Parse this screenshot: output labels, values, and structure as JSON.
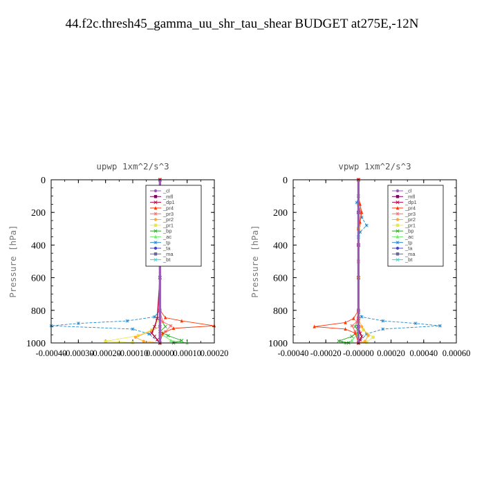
{
  "suptitle": "44.f2c.thresh45_gamma_uu_shr_tau_shear  BUDGET at275E,-12N",
  "legend_labels": [
    "_cl",
    "_mfl",
    "_dp1",
    "_pr4",
    "_pr3",
    "_pr2",
    "_pr1",
    "_bp",
    "_ac",
    "_tp",
    "_ta",
    "_ma",
    "_bt"
  ],
  "legend_colors": [
    "#9b59b6",
    "#800060",
    "#b0003a",
    "#ff3300",
    "#ff6666",
    "#ffaa33",
    "#e8e84a",
    "#22aa22",
    "#66ee66",
    "#2288cc",
    "#4444cc",
    "#666699",
    "#22dddd"
  ],
  "chart_data": [
    {
      "type": "line",
      "title": "upwp   1xm^2/s^3",
      "ylabel": "Pressure [hPa]",
      "ylim": [
        1000,
        0
      ],
      "xlim": [
        -0.0004,
        0.0002
      ],
      "yticks": [
        "0",
        "200",
        "400",
        "600",
        "800",
        "1000"
      ],
      "xticks": [
        "-0.00040",
        "-0.00030",
        "-0.00020",
        "-0.00010",
        "0.00000",
        "0.00010",
        "0.00020"
      ],
      "series": [
        {
          "name": "_cl",
          "x": [
            0,
            0,
            0,
            0,
            0,
            0,
            0,
            0,
            0,
            0,
            0,
            0
          ],
          "y": [
            0,
            100,
            200,
            300,
            400,
            500,
            600,
            700,
            800,
            900,
            950,
            1000
          ]
        },
        {
          "name": "_mfl",
          "x": [
            0,
            0,
            0,
            0,
            0,
            0,
            0,
            0,
            0,
            0,
            0,
            0
          ],
          "y": [
            0,
            100,
            200,
            300,
            400,
            500,
            600,
            700,
            800,
            900,
            950,
            1000
          ]
        },
        {
          "name": "_dp1",
          "x": [
            0,
            0,
            0,
            0,
            0,
            0,
            0,
            -1e-05,
            -2e-05,
            -3e-05,
            -2e-05,
            -1e-05,
            0
          ],
          "y": [
            0,
            100,
            200,
            300,
            400,
            500,
            600,
            850,
            900,
            940,
            960,
            980,
            1000
          ]
        },
        {
          "name": "_pr4",
          "x": [
            0,
            0,
            0,
            5e-06,
            0,
            0,
            0,
            2e-05,
            8e-05,
            0.0002,
            5e-05,
            1e-05,
            0
          ],
          "y": [
            0,
            100,
            200,
            250,
            300,
            500,
            800,
            845,
            865,
            895,
            910,
            940,
            1000
          ]
        },
        {
          "name": "_pr3",
          "x": [
            0,
            0,
            5e-06,
            0,
            0,
            0,
            1e-05,
            4e-05,
            2e-05,
            0,
            0
          ],
          "y": [
            0,
            150,
            230,
            270,
            500,
            800,
            870,
            895,
            930,
            960,
            1000
          ]
        },
        {
          "name": "_pr2",
          "x": [
            0,
            0,
            0,
            0,
            0,
            -3e-05,
            -9e-05,
            -6e-05,
            0
          ],
          "y": [
            0,
            300,
            600,
            800,
            900,
            925,
            965,
            990,
            1000
          ]
        },
        {
          "name": "_pr1",
          "x": [
            0,
            0,
            0,
            0,
            -3e-05,
            -8e-05,
            -0.0002,
            -0.0001,
            0
          ],
          "y": [
            0,
            300,
            600,
            850,
            920,
            955,
            990,
            998,
            1000
          ]
        },
        {
          "name": "_bp",
          "x": [
            0,
            0,
            0,
            0,
            2e-05,
            0,
            3e-05,
            8e-05,
            5e-05
          ],
          "y": [
            0,
            300,
            600,
            850,
            900,
            930,
            955,
            985,
            1000
          ]
        },
        {
          "name": "_ac",
          "x": [
            0,
            0,
            0,
            0,
            1e-05,
            4e-05,
            0.0001
          ],
          "y": [
            0,
            300,
            600,
            900,
            950,
            985,
            1000
          ]
        },
        {
          "name": "_tp",
          "x": [
            0,
            0,
            -5e-06,
            -1.5e-05,
            0,
            0,
            0,
            -2e-05,
            -0.00012,
            -0.0003,
            -0.0004,
            -0.0001,
            -4e-05,
            0
          ],
          "y": [
            0,
            100,
            150,
            200,
            240,
            500,
            800,
            840,
            865,
            880,
            895,
            915,
            945,
            1000
          ]
        },
        {
          "name": "_ta",
          "x": [
            0,
            0,
            0,
            0,
            0,
            0,
            0
          ],
          "y": [
            0,
            200,
            400,
            600,
            800,
            900,
            1000
          ]
        },
        {
          "name": "_ma",
          "x": [
            0,
            0,
            0,
            0,
            0,
            0,
            0
          ],
          "y": [
            0,
            200,
            400,
            600,
            800,
            900,
            1000
          ]
        },
        {
          "name": "_bt",
          "x": [
            0,
            0,
            0,
            0,
            0,
            0,
            0
          ],
          "y": [
            0,
            200,
            400,
            600,
            800,
            900,
            1000
          ]
        }
      ]
    },
    {
      "type": "line",
      "title": "vpwp   1xm^2/s^3",
      "ylabel": "Pressure [hPa]",
      "ylim": [
        1000,
        0
      ],
      "xlim": [
        -0.0004,
        0.0006
      ],
      "yticks": [
        "0",
        "200",
        "400",
        "600",
        "800",
        "1000"
      ],
      "xticks": [
        "-0.00040",
        "-0.00020",
        "-0.00000",
        "0.00020",
        "0.00040",
        "0.00060"
      ],
      "series": [
        {
          "name": "_cl",
          "x": [
            0,
            0,
            0,
            0,
            0,
            0,
            0,
            0,
            0,
            0,
            0,
            0
          ],
          "y": [
            0,
            100,
            200,
            300,
            400,
            500,
            600,
            700,
            800,
            900,
            950,
            1000
          ]
        },
        {
          "name": "_mfl",
          "x": [
            0,
            0,
            0,
            0,
            0,
            0,
            0,
            0,
            0,
            0,
            0,
            0
          ],
          "y": [
            0,
            100,
            200,
            300,
            400,
            500,
            600,
            700,
            800,
            900,
            950,
            1000
          ]
        },
        {
          "name": "_dp1",
          "x": [
            0,
            0,
            0,
            0,
            0,
            0,
            1e-05,
            2e-05,
            1e-05,
            0
          ],
          "y": [
            0,
            200,
            400,
            600,
            850,
            900,
            940,
            960,
            980,
            1000
          ]
        },
        {
          "name": "_pr4",
          "x": [
            0,
            0,
            1e-05,
            2e-05,
            1e-05,
            0,
            0,
            -3e-05,
            -8e-05,
            -0.00027,
            -8e-05,
            -2e-05,
            0
          ],
          "y": [
            0,
            100,
            150,
            200,
            260,
            300,
            800,
            850,
            875,
            900,
            915,
            940,
            1000
          ]
        },
        {
          "name": "_pr3",
          "x": [
            0,
            0,
            1.5e-05,
            5e-06,
            0,
            0,
            -1e-05,
            -4e-05,
            -2e-05,
            0
          ],
          "y": [
            0,
            150,
            200,
            280,
            500,
            800,
            870,
            895,
            930,
            1000
          ]
        },
        {
          "name": "_pr2",
          "x": [
            0,
            0,
            0,
            0,
            2e-05,
            6e-05,
            4e-05,
            0
          ],
          "y": [
            0,
            300,
            600,
            850,
            900,
            955,
            990,
            1000
          ]
        },
        {
          "name": "_pr1",
          "x": [
            0,
            0,
            0,
            0,
            3e-05,
            9e-05,
            5e-05,
            0
          ],
          "y": [
            0,
            300,
            600,
            850,
            920,
            965,
            995,
            1000
          ]
        },
        {
          "name": "_bp",
          "x": [
            0,
            0,
            0,
            0,
            -2e-05,
            0,
            -4e-05,
            -0.00012,
            -6e-05
          ],
          "y": [
            0,
            300,
            600,
            850,
            900,
            930,
            960,
            988,
            1000
          ]
        },
        {
          "name": "_ac",
          "x": [
            0,
            0,
            0,
            0,
            -1e-05,
            -4e-05,
            -8e-05
          ],
          "y": [
            0,
            300,
            600,
            900,
            950,
            985,
            1000
          ]
        },
        {
          "name": "_tp",
          "x": [
            0,
            0,
            -1e-05,
            5e-06,
            2e-05,
            5e-05,
            1e-05,
            0,
            0,
            0,
            2e-05,
            0.00015,
            0.00035,
            0.0005,
            0.00015,
            5e-05,
            0
          ],
          "y": [
            0,
            100,
            140,
            180,
            230,
            280,
            320,
            350,
            500,
            800,
            840,
            865,
            880,
            895,
            915,
            945,
            1000
          ]
        },
        {
          "name": "_ta",
          "x": [
            0,
            0,
            0,
            0,
            0,
            0,
            0
          ],
          "y": [
            0,
            200,
            400,
            600,
            800,
            900,
            1000
          ]
        },
        {
          "name": "_ma",
          "x": [
            0,
            0,
            0,
            0,
            0,
            0,
            0
          ],
          "y": [
            0,
            200,
            400,
            600,
            800,
            900,
            1000
          ]
        },
        {
          "name": "_bt",
          "x": [
            0,
            0,
            0,
            0,
            0,
            0,
            0
          ],
          "y": [
            0,
            200,
            400,
            600,
            800,
            900,
            1000
          ]
        }
      ]
    }
  ]
}
